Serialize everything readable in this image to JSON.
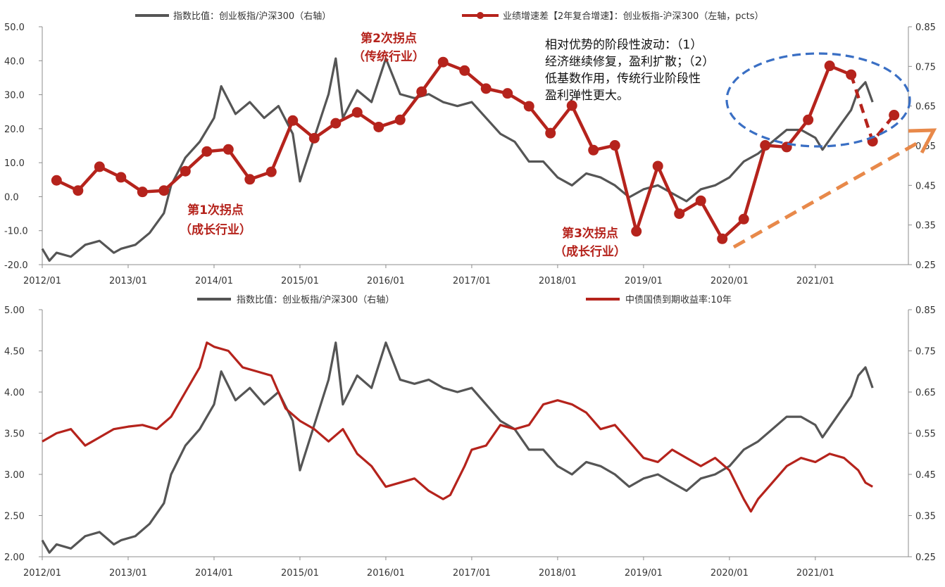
{
  "chart_data": [
    {
      "type": "line",
      "legend": {
        "ratio_label": "指数比值：创业板指/沪深300（右轴）",
        "growth_label": "业绩增速差【2年复合增速】：创业板指-沪深300（左轴，pcts）"
      },
      "x_ticks": [
        "2012/01",
        "2013/01",
        "2014/01",
        "2015/01",
        "2016/01",
        "2017/01",
        "2018/01",
        "2019/01",
        "2020/01",
        "2021/01"
      ],
      "y_left": {
        "min": -20,
        "max": 50,
        "ticks": [
          "-20.0",
          "-10.0",
          "0.0",
          "10.0",
          "20.0",
          "30.0",
          "40.0",
          "50.0"
        ]
      },
      "y_right": {
        "min": 0.25,
        "max": 0.85,
        "ticks": [
          "0.25",
          "0.35",
          "0.45",
          "0.55",
          "0.65",
          "0.75",
          "0.85"
        ]
      },
      "annotations": {
        "turn1_a": "第1次拐点",
        "turn1_b": "（成长行业）",
        "turn2_a": "第2次拐点",
        "turn2_b": "（传统行业）",
        "turn3_a": "第3次拐点",
        "turn3_b": "（成长行业）",
        "note": [
          "相对优势的阶段性波动：（1）",
          "经济继续修复，盈利扩散；（2）",
          "低基数作用，传统行业阶段性",
          "盈利弹性更大。"
        ]
      },
      "series": [
        {
          "name": "业绩增速差【2年复合增速】：创业板指-沪深300（左轴，pcts）",
          "axis": "left",
          "color": "#b5231c",
          "x": [
            "2012-03",
            "2012-06",
            "2012-09",
            "2012-12",
            "2013-03",
            "2013-06",
            "2013-09",
            "2013-12",
            "2014-03",
            "2014-06",
            "2014-09",
            "2014-12",
            "2015-03",
            "2015-06",
            "2015-09",
            "2015-12",
            "2016-03",
            "2016-06",
            "2016-09",
            "2016-12",
            "2017-03",
            "2017-06",
            "2017-09",
            "2017-12",
            "2018-03",
            "2018-06",
            "2018-09",
            "2018-12",
            "2019-03",
            "2019-06",
            "2019-09",
            "2019-12",
            "2020-03",
            "2020-06",
            "2020-09",
            "2020-12",
            "2021-03",
            "2021-06",
            "2021-09",
            "2021-12"
          ],
          "values": [
            4.8,
            1.8,
            8.8,
            5.7,
            1.4,
            1.8,
            7.5,
            13.3,
            13.9,
            5.1,
            7.3,
            22.4,
            17.2,
            21.6,
            24.8,
            20.5,
            22.6,
            30.9,
            39.6,
            37.1,
            31.8,
            30.4,
            26.6,
            18.7,
            26.8,
            13.7,
            15.1,
            -10.2,
            9.0,
            -5.0,
            -1.2,
            -12.4,
            -6.6,
            15.1,
            14.6,
            22.6,
            38.5,
            35.9,
            16.3,
            24.0
          ]
        },
        {
          "name": "指数比值：创业板指/沪深300（右轴）",
          "axis": "right",
          "color": "#555555",
          "x": [
            "2012-01",
            "2012-02",
            "2012-03",
            "2012-05",
            "2012-07",
            "2012-09",
            "2012-11",
            "2012-12",
            "2013-02",
            "2013-04",
            "2013-06",
            "2013-07",
            "2013-09",
            "2013-11",
            "2014-01",
            "2014-02",
            "2014-04",
            "2014-06",
            "2014-08",
            "2014-10",
            "2014-12",
            "2015-01",
            "2015-03",
            "2015-05",
            "2015-06",
            "2015-07",
            "2015-09",
            "2015-11",
            "2016-01",
            "2016-03",
            "2016-05",
            "2016-07",
            "2016-09",
            "2016-11",
            "2017-01",
            "2017-03",
            "2017-05",
            "2017-07",
            "2017-09",
            "2017-11",
            "2018-01",
            "2018-03",
            "2018-05",
            "2018-07",
            "2018-09",
            "2018-11",
            "2019-01",
            "2019-03",
            "2019-05",
            "2019-07",
            "2019-09",
            "2019-11",
            "2020-01",
            "2020-03",
            "2020-05",
            "2020-07",
            "2020-09",
            "2020-11",
            "2021-01",
            "2021-02",
            "2021-04",
            "2021-06",
            "2021-07",
            "2021-08",
            "2021-09"
          ],
          "values": [
            0.29,
            0.26,
            0.28,
            0.27,
            0.3,
            0.31,
            0.28,
            0.29,
            0.3,
            0.33,
            0.38,
            0.45,
            0.52,
            0.56,
            0.62,
            0.7,
            0.63,
            0.66,
            0.62,
            0.65,
            0.58,
            0.46,
            0.57,
            0.68,
            0.77,
            0.62,
            0.69,
            0.66,
            0.77,
            0.68,
            0.67,
            0.68,
            0.66,
            0.65,
            0.66,
            0.62,
            0.58,
            0.56,
            0.51,
            0.51,
            0.47,
            0.45,
            0.48,
            0.47,
            0.45,
            0.42,
            0.44,
            0.45,
            0.43,
            0.41,
            0.44,
            0.45,
            0.47,
            0.51,
            0.53,
            0.56,
            0.59,
            0.59,
            0.57,
            0.54,
            0.59,
            0.64,
            0.69,
            0.71,
            0.66
          ]
        }
      ]
    },
    {
      "type": "line",
      "legend": {
        "ratio_label": "指数比值：创业板指/沪深300（右轴）",
        "yield_label": "中债国债到期收益率:10年"
      },
      "x_ticks": [
        "2012/01",
        "2013/01",
        "2014/01",
        "2015/01",
        "2016/01",
        "2017/01",
        "2018/01",
        "2019/01",
        "2020/01",
        "2021/01"
      ],
      "y_left": {
        "min": 2.0,
        "max": 5.0,
        "ticks": [
          "2.00",
          "2.50",
          "3.00",
          "3.50",
          "4.00",
          "4.50",
          "5.00"
        ]
      },
      "y_right": {
        "min": 0.25,
        "max": 0.85,
        "ticks": [
          "0.25",
          "0.35",
          "0.45",
          "0.55",
          "0.65",
          "0.75",
          "0.85"
        ]
      },
      "series": [
        {
          "name": "中债国债到期收益率:10年",
          "axis": "left",
          "color": "#b5231c",
          "x": [
            "2012-01",
            "2012-03",
            "2012-05",
            "2012-07",
            "2012-09",
            "2012-11",
            "2013-01",
            "2013-03",
            "2013-05",
            "2013-07",
            "2013-09",
            "2013-11",
            "2013-12",
            "2014-01",
            "2014-03",
            "2014-05",
            "2014-07",
            "2014-09",
            "2014-11",
            "2015-01",
            "2015-03",
            "2015-05",
            "2015-07",
            "2015-09",
            "2015-11",
            "2016-01",
            "2016-03",
            "2016-05",
            "2016-07",
            "2016-09",
            "2016-10",
            "2016-12",
            "2017-01",
            "2017-03",
            "2017-05",
            "2017-07",
            "2017-09",
            "2017-11",
            "2018-01",
            "2018-03",
            "2018-05",
            "2018-07",
            "2018-09",
            "2018-11",
            "2019-01",
            "2019-03",
            "2019-05",
            "2019-07",
            "2019-09",
            "2019-11",
            "2020-01",
            "2020-03",
            "2020-04",
            "2020-05",
            "2020-07",
            "2020-09",
            "2020-11",
            "2021-01",
            "2021-03",
            "2021-05",
            "2021-07",
            "2021-08",
            "2021-09"
          ],
          "values": [
            3.4,
            3.5,
            3.55,
            3.35,
            3.45,
            3.55,
            3.58,
            3.6,
            3.55,
            3.7,
            4.0,
            4.3,
            4.6,
            4.55,
            4.5,
            4.3,
            4.25,
            4.2,
            3.8,
            3.65,
            3.55,
            3.4,
            3.55,
            3.25,
            3.1,
            2.85,
            2.9,
            2.95,
            2.8,
            2.7,
            2.75,
            3.1,
            3.3,
            3.35,
            3.6,
            3.55,
            3.6,
            3.85,
            3.9,
            3.85,
            3.75,
            3.55,
            3.6,
            3.4,
            3.2,
            3.15,
            3.3,
            3.2,
            3.1,
            3.2,
            3.05,
            2.7,
            2.55,
            2.7,
            2.9,
            3.1,
            3.2,
            3.15,
            3.25,
            3.2,
            3.05,
            2.9,
            2.85
          ]
        },
        {
          "name": "指数比值：创业板指/沪深300（右轴）",
          "axis": "right",
          "color": "#555555",
          "x": [
            "2012-01",
            "2012-02",
            "2012-03",
            "2012-05",
            "2012-07",
            "2012-09",
            "2012-11",
            "2012-12",
            "2013-02",
            "2013-04",
            "2013-06",
            "2013-07",
            "2013-09",
            "2013-11",
            "2014-01",
            "2014-02",
            "2014-04",
            "2014-06",
            "2014-08",
            "2014-10",
            "2014-12",
            "2015-01",
            "2015-03",
            "2015-05",
            "2015-06",
            "2015-07",
            "2015-09",
            "2015-11",
            "2016-01",
            "2016-03",
            "2016-05",
            "2016-07",
            "2016-09",
            "2016-11",
            "2017-01",
            "2017-03",
            "2017-05",
            "2017-07",
            "2017-09",
            "2017-11",
            "2018-01",
            "2018-03",
            "2018-05",
            "2018-07",
            "2018-09",
            "2018-11",
            "2019-01",
            "2019-03",
            "2019-05",
            "2019-07",
            "2019-09",
            "2019-11",
            "2020-01",
            "2020-03",
            "2020-05",
            "2020-07",
            "2020-09",
            "2020-11",
            "2021-01",
            "2021-02",
            "2021-04",
            "2021-06",
            "2021-07",
            "2021-08",
            "2021-09"
          ],
          "values": [
            0.29,
            0.26,
            0.28,
            0.27,
            0.3,
            0.31,
            0.28,
            0.29,
            0.3,
            0.33,
            0.38,
            0.45,
            0.52,
            0.56,
            0.62,
            0.7,
            0.63,
            0.66,
            0.62,
            0.65,
            0.58,
            0.46,
            0.57,
            0.68,
            0.77,
            0.62,
            0.69,
            0.66,
            0.77,
            0.68,
            0.67,
            0.68,
            0.66,
            0.65,
            0.66,
            0.62,
            0.58,
            0.56,
            0.51,
            0.51,
            0.47,
            0.45,
            0.48,
            0.47,
            0.45,
            0.42,
            0.44,
            0.45,
            0.43,
            0.41,
            0.44,
            0.45,
            0.47,
            0.51,
            0.53,
            0.56,
            0.59,
            0.59,
            0.57,
            0.54,
            0.59,
            0.64,
            0.69,
            0.71,
            0.66
          ]
        }
      ]
    }
  ]
}
